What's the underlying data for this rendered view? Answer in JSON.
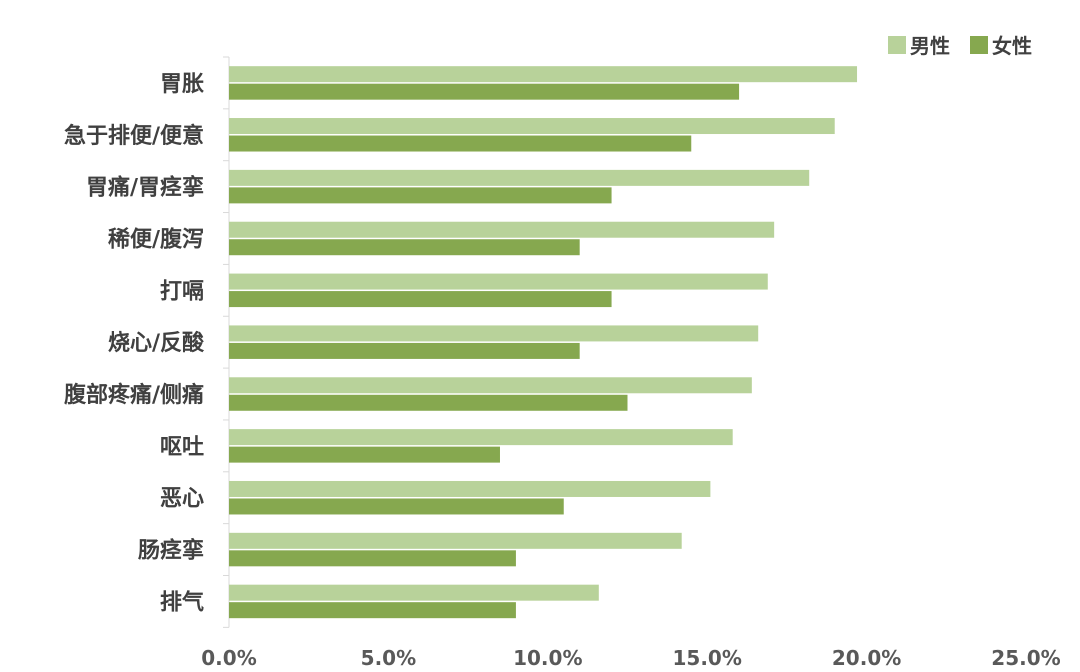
{
  "chart_data": {
    "type": "bar",
    "orientation": "horizontal",
    "categories": [
      "胃胀",
      "急于排便/便意",
      "胃痛/胃痉挛",
      "稀便/腹泻",
      "打嗝",
      "烧心/反酸",
      "腹部疼痛/侧痛",
      "呕吐",
      "恶心",
      "肠痉挛",
      "排气"
    ],
    "series": [
      {
        "name": "男性",
        "color": "#b8d29a",
        "values": [
          19.7,
          19.0,
          18.2,
          17.1,
          16.9,
          16.6,
          16.4,
          15.8,
          15.1,
          14.2,
          11.6
        ]
      },
      {
        "name": "女性",
        "color": "#86a84f",
        "values": [
          16.0,
          14.5,
          12.0,
          11.0,
          12.0,
          11.0,
          12.5,
          8.5,
          10.5,
          9.0,
          9.0
        ]
      }
    ],
    "xlim": [
      0,
      25
    ],
    "xticks": [
      "0.0%",
      "5.0%",
      "10.0%",
      "15.0%",
      "20.0%",
      "25.0%"
    ],
    "legend_position": "top-right",
    "grid": false
  }
}
